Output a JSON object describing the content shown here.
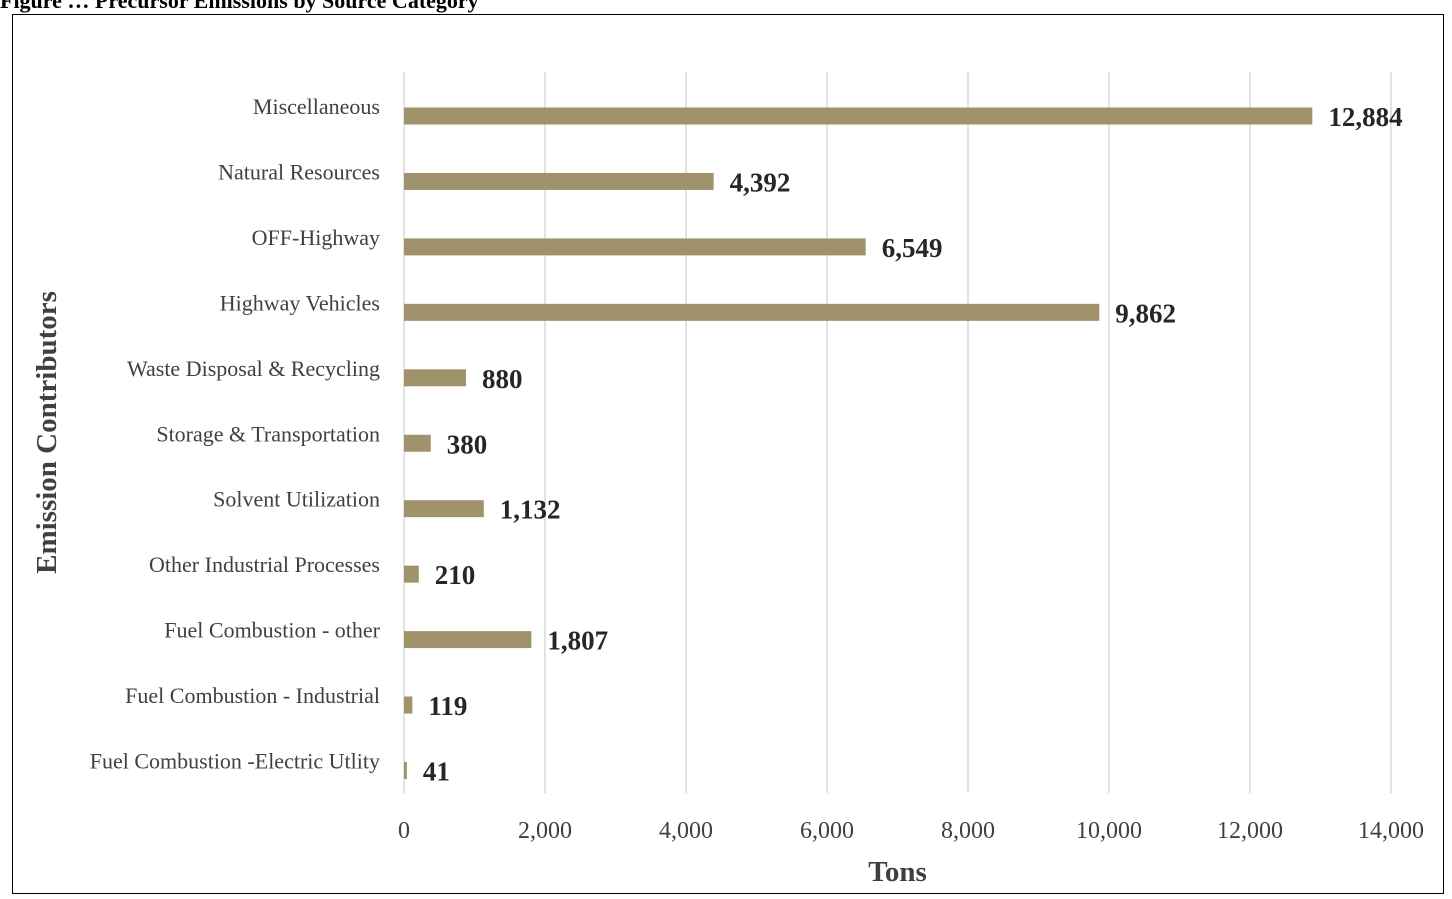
{
  "caption": "Figure … Precursor Emissions by Source Category",
  "chart_data": {
    "type": "bar",
    "orientation": "horizontal",
    "categories": [
      "Miscellaneous",
      "Natural Resources",
      "OFF-Highway",
      "Highway Vehicles",
      "Waste Disposal & Recycling",
      "Storage & Transportation",
      "Solvent Utilization",
      "Other Industrial Processes",
      "Fuel Combustion - other",
      "Fuel Combustion - Industrial",
      "Fuel Combustion -Electric Utlity"
    ],
    "values": [
      12884,
      4392,
      6549,
      9862,
      880,
      380,
      1132,
      210,
      1807,
      119,
      41
    ],
    "value_labels": [
      "12,884",
      "4,392",
      "6,549",
      "9,862",
      "880",
      "380",
      "1,132",
      "210",
      "1,807",
      "119",
      "41"
    ],
    "xlabel": "Tons",
    "ylabel": "Emission Contributors",
    "xlim": [
      0,
      14000
    ],
    "xticks": [
      "0",
      "2,000",
      "4,000",
      "6,000",
      "8,000",
      "10,000",
      "12,000",
      "14,000"
    ],
    "bar_color": "#A0936B",
    "grid": true
  }
}
